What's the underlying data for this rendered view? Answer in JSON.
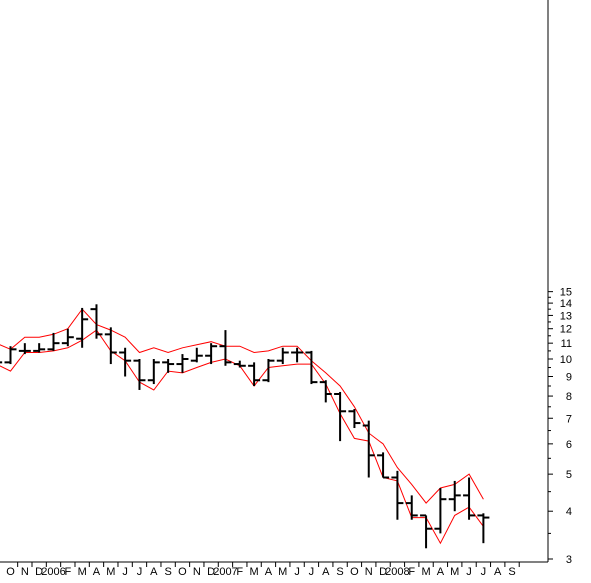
{
  "chart_data": {
    "type": "ohlc",
    "title": "",
    "xlabel": "",
    "ylabel": "",
    "y_scale": "log",
    "ylim": [
      2.85,
      16.5
    ],
    "y_ticks": [
      3,
      4,
      5,
      6,
      7,
      8,
      9,
      10,
      11,
      12,
      13,
      14,
      15
    ],
    "y_axis_position": "right",
    "grid": false,
    "legend": "none",
    "x_tick_labels": [
      "O",
      "N",
      "D",
      "2006",
      "F",
      "M",
      "A",
      "M",
      "J",
      "J",
      "A",
      "S",
      "O",
      "N",
      "D",
      "2007",
      "F",
      "M",
      "A",
      "M",
      "J",
      "J",
      "A",
      "S",
      "O",
      "N",
      "D",
      "2008",
      "F",
      "M",
      "A",
      "M",
      "J",
      "J",
      "A",
      "S"
    ],
    "colors": {
      "bars": "#000000",
      "envelope": "#ff0000",
      "axis": "#000000"
    },
    "ohlc": [
      {
        "month": "Sep 2005",
        "open": 11.0,
        "high": 11.3,
        "low": 9.4,
        "close": 9.8
      },
      {
        "month": "Oct 2005",
        "open": 9.8,
        "high": 10.8,
        "low": 9.7,
        "close": 10.6
      },
      {
        "month": "Nov 2005",
        "open": 10.5,
        "high": 11.0,
        "low": 10.3,
        "close": 10.5
      },
      {
        "month": "Dec 2005",
        "open": 10.5,
        "high": 11.0,
        "low": 10.4,
        "close": 10.6
      },
      {
        "month": "Jan 2006",
        "open": 10.6,
        "high": 11.7,
        "low": 10.5,
        "close": 11.0
      },
      {
        "month": "Feb 2006",
        "open": 11.0,
        "high": 12.0,
        "low": 10.8,
        "close": 11.4
      },
      {
        "month": "Mar 2006",
        "open": 11.3,
        "high": 13.6,
        "low": 10.7,
        "close": 12.7
      },
      {
        "month": "Apr 2006",
        "open": 13.5,
        "high": 13.9,
        "low": 11.3,
        "close": 11.6
      },
      {
        "month": "May 2006",
        "open": 11.6,
        "high": 12.1,
        "low": 9.7,
        "close": 10.4
      },
      {
        "month": "Jun 2006",
        "open": 10.4,
        "high": 10.7,
        "low": 9.0,
        "close": 9.9
      },
      {
        "month": "Jul 2006",
        "open": 9.9,
        "high": 10.0,
        "low": 8.3,
        "close": 8.8
      },
      {
        "month": "Aug 2006",
        "open": 8.8,
        "high": 10.0,
        "low": 8.6,
        "close": 9.8
      },
      {
        "month": "Sep 2006",
        "open": 9.8,
        "high": 10.0,
        "low": 9.2,
        "close": 9.7
      },
      {
        "month": "Oct 2006",
        "open": 9.7,
        "high": 10.3,
        "low": 9.2,
        "close": 10.0
      },
      {
        "month": "Nov 2006",
        "open": 9.9,
        "high": 10.7,
        "low": 9.8,
        "close": 10.2
      },
      {
        "month": "Dec 2006",
        "open": 10.2,
        "high": 11.0,
        "low": 9.7,
        "close": 10.8
      },
      {
        "month": "Jan 2007",
        "open": 10.8,
        "high": 11.9,
        "low": 9.6,
        "close": 9.8
      },
      {
        "month": "Feb 2007",
        "open": 9.7,
        "high": 9.9,
        "low": 9.5,
        "close": 9.6
      },
      {
        "month": "Mar 2007",
        "open": 9.6,
        "high": 9.8,
        "low": 8.5,
        "close": 8.8
      },
      {
        "month": "Apr 2007",
        "open": 8.8,
        "high": 10.0,
        "low": 8.7,
        "close": 9.9
      },
      {
        "month": "May 2007",
        "open": 9.9,
        "high": 10.7,
        "low": 9.7,
        "close": 10.4
      },
      {
        "month": "Jun 2007",
        "open": 10.4,
        "high": 10.7,
        "low": 9.8,
        "close": 10.4
      },
      {
        "month": "Jul 2007",
        "open": 10.4,
        "high": 10.5,
        "low": 8.6,
        "close": 8.7
      },
      {
        "month": "Aug 2007",
        "open": 8.7,
        "high": 8.8,
        "low": 7.7,
        "close": 8.1
      },
      {
        "month": "Sep 2007",
        "open": 8.1,
        "high": 8.2,
        "low": 6.1,
        "close": 7.3
      },
      {
        "month": "Oct 2007",
        "open": 7.3,
        "high": 7.4,
        "low": 6.6,
        "close": 6.8
      },
      {
        "month": "Nov 2007",
        "open": 6.7,
        "high": 6.9,
        "low": 4.9,
        "close": 5.6
      },
      {
        "month": "Dec 2007",
        "open": 5.6,
        "high": 5.7,
        "low": 4.9,
        "close": 4.9
      },
      {
        "month": "Jan 2008",
        "open": 4.9,
        "high": 5.1,
        "low": 3.8,
        "close": 4.2
      },
      {
        "month": "Feb 2008",
        "open": 4.2,
        "high": 4.4,
        "low": 3.8,
        "close": 3.9
      },
      {
        "month": "Mar 2008",
        "open": 3.9,
        "high": 3.9,
        "low": 3.2,
        "close": 3.6
      },
      {
        "month": "Apr 2008",
        "open": 3.6,
        "high": 4.6,
        "low": 3.5,
        "close": 4.3
      },
      {
        "month": "May 2008",
        "open": 4.3,
        "high": 4.8,
        "low": 4.0,
        "close": 4.4
      },
      {
        "month": "Jun 2008",
        "open": 4.4,
        "high": 4.9,
        "low": 3.8,
        "close": 3.9
      },
      {
        "month": "Jul 2008",
        "open": 3.9,
        "high": 3.95,
        "low": 3.3,
        "close": 3.85
      }
    ],
    "series": [
      {
        "style": "solid",
        "x": [
          "Sep 2005",
          "Oct 2005",
          "Nov 2005",
          "Dec 2005",
          "Jan 2006",
          "Feb 2006",
          "Mar 2006",
          "Apr 2006",
          "May 2006",
          "Jun 2006",
          "Jul 2006",
          "Aug 2006",
          "Sep 2006",
          "Oct 2006",
          "Nov 2006",
          "Dec 2006",
          "Jan 2007",
          "Feb 2007",
          "Mar 2007",
          "Apr 2007",
          "May 2007",
          "Jun 2007",
          "Jul 2007",
          "Aug 2007",
          "Sep 2007",
          "Oct 2007",
          "Nov 2007",
          "Dec 2007",
          "Jan 2008",
          "Feb 2008",
          "Mar 2008",
          "Apr 2008",
          "May 2008",
          "Jun 2008",
          "Jul 2008"
        ],
        "values": [
          11.0,
          10.6,
          11.4,
          11.4,
          11.6,
          12.0,
          13.5,
          12.3,
          11.9,
          11.4,
          10.4,
          10.7,
          10.4,
          10.7,
          10.9,
          11.1,
          10.8,
          10.8,
          10.4,
          10.5,
          10.8,
          10.8,
          9.9,
          9.2,
          8.5,
          7.5,
          6.4,
          6.0,
          5.2,
          4.7,
          4.2,
          4.6,
          4.7,
          5.0,
          4.3
        ]
      },
      {
        "style": "solid",
        "x": [
          "Sep 2005",
          "Oct 2005",
          "Nov 2005",
          "Dec 2005",
          "Jan 2006",
          "Feb 2006",
          "Mar 2006",
          "Apr 2006",
          "May 2006",
          "Jun 2006",
          "Jul 2006",
          "Aug 2006",
          "Sep 2006",
          "Oct 2006",
          "Nov 2006",
          "Dec 2006",
          "Jan 2007",
          "Feb 2007",
          "Mar 2007",
          "Apr 2007",
          "May 2007",
          "Jun 2007",
          "Jul 2007",
          "Aug 2007",
          "Sep 2007",
          "Oct 2007",
          "Nov 2007",
          "Dec 2007",
          "Jan 2008",
          "Feb 2008",
          "Mar 2008",
          "Apr 2008",
          "May 2008",
          "Jun 2008",
          "Jul 2008"
        ],
        "values": [
          9.7,
          9.3,
          10.4,
          10.4,
          10.5,
          10.7,
          11.2,
          11.9,
          10.5,
          9.9,
          8.7,
          8.3,
          9.3,
          9.2,
          9.5,
          9.8,
          10.0,
          9.6,
          8.5,
          9.5,
          9.6,
          9.7,
          9.7,
          8.6,
          7.2,
          6.2,
          6.1,
          4.9,
          4.8,
          3.85,
          3.85,
          3.3,
          3.9,
          4.1,
          3.65
        ]
      }
    ]
  }
}
